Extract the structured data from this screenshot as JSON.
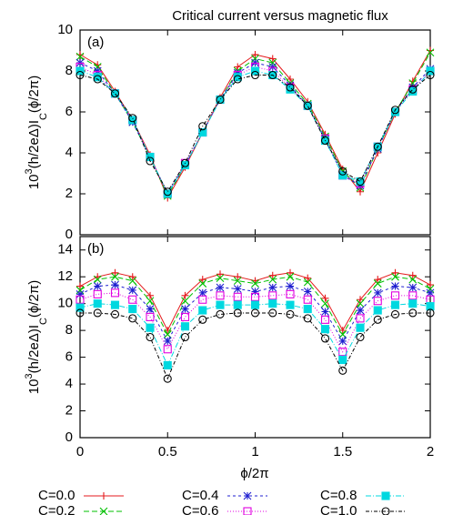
{
  "chart_data": [
    {
      "type": "line",
      "title": "Critical current versus magnetic flux",
      "label": "(a)",
      "ylabel_parts": [
        {
          "text": "10"
        },
        {
          "text": "3",
          "shift": "super"
        },
        {
          "text": "(h/2eΔ)I"
        },
        {
          "text": "C",
          "shift": "sub"
        },
        {
          "text": "(ϕ/2π)"
        }
      ],
      "x": [
        0,
        0.1,
        0.2,
        0.3,
        0.4,
        0.5,
        0.6,
        0.7,
        0.8,
        0.9,
        1.0,
        1.1,
        1.2,
        1.3,
        1.4,
        1.5,
        1.6,
        1.7,
        1.8,
        1.9,
        2.0
      ],
      "xlim": [
        0,
        2
      ],
      "ylim": [
        0,
        10
      ],
      "yticks": [
        0,
        2,
        4,
        6,
        8,
        10
      ],
      "series": [
        {
          "color": "#e41a1c",
          "marker": "plus",
          "dash": "",
          "values": [
            8.8,
            8.3,
            7.0,
            5.6,
            3.9,
            1.8,
            3.3,
            5.0,
            6.7,
            8.2,
            8.8,
            8.6,
            7.6,
            6.5,
            4.9,
            3.2,
            2.1,
            4.0,
            5.9,
            7.5,
            9.0
          ]
        },
        {
          "color": "#00c000",
          "marker": "cross",
          "dash": "6,3",
          "values": [
            8.7,
            8.2,
            6.9,
            5.5,
            3.8,
            1.9,
            3.4,
            5.0,
            6.6,
            8.0,
            8.6,
            8.4,
            7.4,
            6.4,
            4.8,
            3.1,
            2.3,
            4.2,
            6.0,
            7.4,
            8.9
          ]
        },
        {
          "color": "#1f1fd0",
          "marker": "star",
          "dash": "3,3",
          "values": [
            8.4,
            8.0,
            6.9,
            5.5,
            3.8,
            2.0,
            3.4,
            5.0,
            6.6,
            7.9,
            8.4,
            8.2,
            7.3,
            6.3,
            4.7,
            2.9,
            2.4,
            4.2,
            6.0,
            7.2,
            8.1
          ]
        },
        {
          "color": "#e000e0",
          "marker": "square",
          "dash": "1,2",
          "values": [
            8.2,
            7.8,
            6.9,
            5.6,
            3.8,
            2.0,
            3.5,
            5.0,
            6.6,
            7.8,
            8.2,
            8.0,
            7.2,
            6.3,
            4.7,
            2.9,
            2.5,
            4.3,
            6.0,
            7.1,
            8.0
          ]
        },
        {
          "color": "#00d8e0",
          "marker": "filled-square",
          "dash": "6,2,1,2",
          "values": [
            8.0,
            7.7,
            6.9,
            5.6,
            3.8,
            2.0,
            3.4,
            5.0,
            6.6,
            7.7,
            8.0,
            7.8,
            7.1,
            6.3,
            4.6,
            2.9,
            2.6,
            4.3,
            6.0,
            7.0,
            8.0
          ]
        },
        {
          "color": "#000000",
          "marker": "circle",
          "dash": "4,2,1,2",
          "values": [
            7.8,
            7.6,
            6.9,
            5.7,
            3.6,
            2.1,
            3.5,
            5.3,
            6.6,
            7.6,
            7.8,
            7.8,
            7.2,
            6.3,
            4.6,
            3.1,
            2.6,
            4.3,
            6.1,
            7.1,
            7.8
          ]
        }
      ]
    },
    {
      "type": "line",
      "label": "(b)",
      "xlabel": "ϕ/2π",
      "ylabel_parts": [
        {
          "text": "10"
        },
        {
          "text": "3",
          "shift": "super"
        },
        {
          "text": "(h/2eΔ)I"
        },
        {
          "text": "C",
          "shift": "sub"
        },
        {
          "text": "(ϕ/2π)"
        }
      ],
      "x": [
        0,
        0.1,
        0.2,
        0.3,
        0.4,
        0.5,
        0.6,
        0.7,
        0.8,
        0.9,
        1.0,
        1.1,
        1.2,
        1.3,
        1.4,
        1.5,
        1.6,
        1.7,
        1.8,
        1.9,
        2.0
      ],
      "xlim": [
        0,
        2
      ],
      "xticks": [
        0,
        0.5,
        1,
        1.5,
        2
      ],
      "ylim": [
        0,
        15
      ],
      "yticks": [
        0,
        2,
        4,
        6,
        8,
        10,
        12,
        14
      ],
      "series": [
        {
          "name": "C=0.0",
          "color": "#e41a1c",
          "marker": "plus",
          "dash": "",
          "values": [
            11.3,
            12.0,
            12.3,
            12.0,
            10.6,
            8.0,
            10.6,
            11.8,
            12.2,
            12.0,
            11.7,
            12.1,
            12.3,
            11.9,
            10.4,
            8.0,
            10.3,
            11.8,
            12.3,
            12.1,
            11.4
          ]
        },
        {
          "name": "C=0.2",
          "color": "#00c000",
          "marker": "cross",
          "dash": "6,3",
          "values": [
            11.0,
            11.8,
            12.0,
            11.7,
            10.2,
            7.7,
            10.2,
            11.5,
            11.9,
            11.7,
            11.5,
            11.8,
            12.0,
            11.6,
            10.0,
            7.7,
            10.0,
            11.5,
            12.0,
            11.8,
            11.1
          ]
        },
        {
          "name": "C=0.4",
          "color": "#1f1fd0",
          "marker": "star",
          "dash": "3,3",
          "values": [
            10.7,
            11.3,
            11.4,
            11.0,
            9.6,
            7.2,
            9.6,
            10.8,
            11.2,
            11.1,
            10.9,
            11.2,
            11.3,
            10.9,
            9.4,
            7.2,
            9.5,
            10.8,
            11.3,
            11.2,
            10.8
          ]
        },
        {
          "name": "C=0.6",
          "color": "#e000e0",
          "marker": "square",
          "dash": "1,2",
          "values": [
            10.3,
            10.7,
            10.8,
            10.3,
            9.0,
            6.6,
            9.0,
            10.3,
            10.6,
            10.5,
            10.5,
            10.6,
            10.7,
            10.3,
            8.8,
            6.4,
            8.9,
            10.2,
            10.6,
            10.6,
            10.3
          ]
        },
        {
          "name": "C=0.8",
          "color": "#00d8e0",
          "marker": "filled-square",
          "dash": "6,2,1,2",
          "values": [
            9.7,
            10.0,
            9.9,
            9.6,
            8.2,
            5.4,
            8.3,
            9.5,
            9.9,
            9.9,
            9.9,
            10.0,
            9.9,
            9.6,
            8.1,
            5.8,
            8.2,
            9.5,
            9.9,
            10.0,
            9.8
          ]
        },
        {
          "name": "C=1.0",
          "color": "#000000",
          "marker": "circle",
          "dash": "4,2,1,2",
          "values": [
            9.3,
            9.3,
            9.2,
            8.9,
            7.5,
            4.4,
            7.5,
            8.8,
            9.2,
            9.3,
            9.3,
            9.3,
            9.2,
            8.9,
            7.4,
            5.0,
            7.5,
            8.8,
            9.2,
            9.3,
            9.3
          ]
        }
      ]
    }
  ]
}
